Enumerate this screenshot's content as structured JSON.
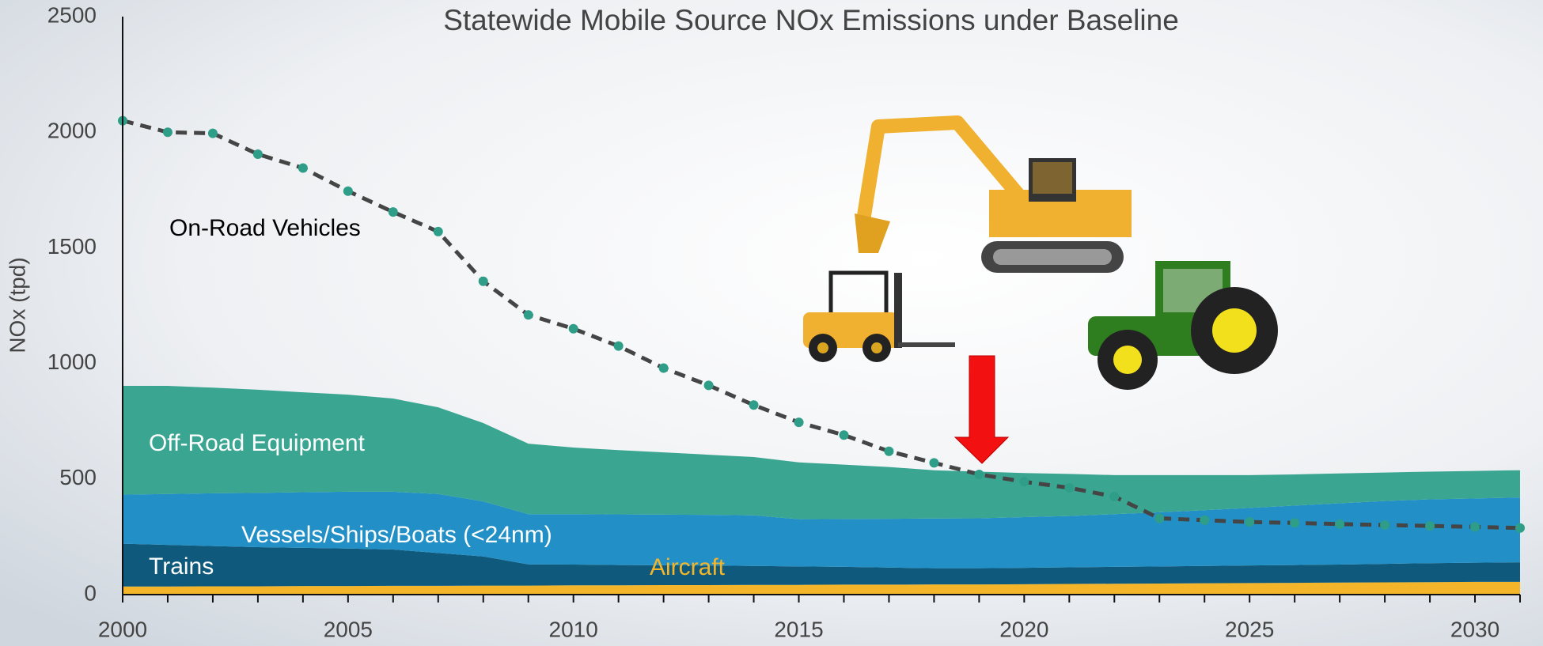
{
  "chart_data": {
    "type": "area",
    "title": "Statewide Mobile Source NOx Emissions under Baseline",
    "y_label": "NOx (tpd)",
    "x": [
      2000,
      2001,
      2002,
      2003,
      2004,
      2005,
      2006,
      2007,
      2008,
      2009,
      2010,
      2011,
      2012,
      2013,
      2014,
      2015,
      2016,
      2017,
      2018,
      2019,
      2020,
      2021,
      2022,
      2023,
      2024,
      2025,
      2026,
      2027,
      2028,
      2029,
      2030,
      2031
    ],
    "xlim": [
      2000,
      2031
    ],
    "xticks": [
      2000,
      2005,
      2010,
      2015,
      2020,
      2025,
      2030
    ],
    "ylim": [
      0,
      2500
    ],
    "yticks": [
      0,
      500,
      1000,
      1500,
      2000,
      2500
    ],
    "stacked": true,
    "series": [
      {
        "name": "Aircraft",
        "type": "area",
        "color": "#f5b52a",
        "values": [
          35,
          35,
          36,
          36,
          37,
          37,
          38,
          38,
          39,
          39,
          40,
          40,
          41,
          41,
          42,
          42,
          43,
          43,
          44,
          44,
          45,
          46,
          47,
          48,
          49,
          50,
          51,
          52,
          53,
          54,
          55,
          55
        ]
      },
      {
        "name": "Trains",
        "type": "area",
        "color": "#0f5a7c",
        "values": [
          185,
          180,
          174,
          169,
          165,
          162,
          157,
          142,
          126,
          92,
          90,
          88,
          86,
          85,
          82,
          80,
          77,
          74,
          70,
          70,
          71,
          72,
          73,
          74,
          75,
          76,
          77,
          78,
          80,
          82,
          83,
          85
        ]
      },
      {
        "name": "Vessels/Ships/Boats (<24nm)",
        "type": "area",
        "color": "#2290c6",
        "values": [
          212,
          220,
          228,
          235,
          241,
          246,
          250,
          255,
          238,
          217,
          218,
          219,
          219,
          219,
          219,
          204,
          207,
          211,
          215,
          216,
          219,
          222,
          228,
          234,
          241,
          249,
          257,
          265,
          272,
          276,
          278,
          280
        ]
      },
      {
        "name": "Off-Road Equipment",
        "type": "area",
        "color": "#3aa591",
        "values": [
          471,
          468,
          457,
          446,
          432,
          420,
          403,
          375,
          339,
          305,
          288,
          278,
          269,
          260,
          252,
          246,
          235,
          224,
          209,
          202,
          191,
          182,
          169,
          161,
          152,
          142,
          135,
          129,
          123,
          120,
          119,
          118
        ]
      },
      {
        "name": "On-Road Vehicles",
        "type": "line",
        "color": "#454545",
        "marker_color": "#2e9e88",
        "values": [
          2050,
          2000,
          1995,
          1905,
          1845,
          1745,
          1655,
          1570,
          1355,
          1210,
          1150,
          1075,
          980,
          905,
          820,
          745,
          690,
          620,
          570,
          520,
          488,
          462,
          424,
          330,
          322,
          314,
          310,
          305,
          301,
          297,
          293,
          288
        ]
      }
    ]
  }
}
